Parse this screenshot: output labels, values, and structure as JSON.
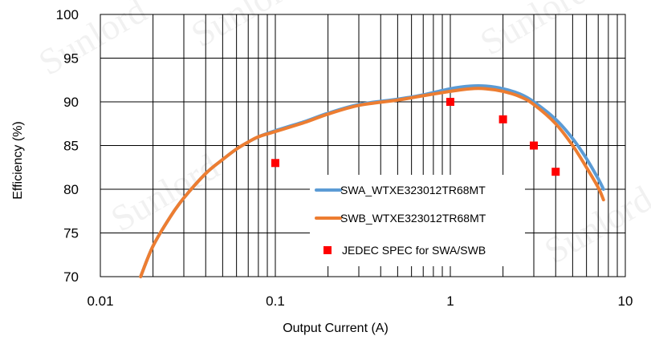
{
  "chart_data": {
    "type": "line",
    "xscale": "log",
    "xlim": [
      0.01,
      10
    ],
    "ylim": [
      70,
      100
    ],
    "grid": true,
    "legend_position": "center-right",
    "xlabel": "Output Current (A)",
    "ylabel": "Efficiency (%)",
    "x_tick_labels": [
      "0.01",
      "0.1",
      "1",
      "10"
    ],
    "y_tick_labels": [
      "70",
      "75",
      "80",
      "85",
      "90",
      "95",
      "100"
    ],
    "series": [
      {
        "name": "SWA_WTXE323012TR68MT",
        "color": "#5B9BD5",
        "kind": "line",
        "x": [
          0.017,
          0.02,
          0.025,
          0.03,
          0.04,
          0.05,
          0.06,
          0.07,
          0.08,
          0.1,
          0.15,
          0.2,
          0.3,
          0.5,
          0.7,
          1.0,
          1.3,
          1.6,
          2.0,
          2.5,
          3.0,
          4.0,
          5.0,
          6.0,
          7.0,
          7.5
        ],
        "y": [
          70.0,
          73.5,
          76.8,
          79.0,
          81.8,
          83.4,
          84.6,
          85.4,
          86.0,
          86.7,
          87.8,
          88.7,
          89.7,
          90.3,
          90.8,
          91.5,
          91.8,
          91.8,
          91.5,
          90.9,
          90.0,
          88.0,
          85.8,
          83.5,
          81.2,
          80.0
        ]
      },
      {
        "name": "SWB_WTXE323012TR68MT",
        "color": "#ED7D31",
        "kind": "line",
        "x": [
          0.017,
          0.02,
          0.025,
          0.03,
          0.04,
          0.05,
          0.06,
          0.07,
          0.08,
          0.1,
          0.15,
          0.2,
          0.3,
          0.5,
          0.7,
          1.0,
          1.3,
          1.6,
          2.0,
          2.5,
          3.0,
          4.0,
          5.0,
          6.0,
          7.0,
          7.5
        ],
        "y": [
          70.0,
          73.5,
          76.8,
          79.0,
          81.8,
          83.4,
          84.6,
          85.4,
          86.0,
          86.6,
          87.7,
          88.6,
          89.6,
          90.2,
          90.7,
          91.2,
          91.5,
          91.5,
          91.2,
          90.6,
          89.7,
          87.5,
          85.0,
          82.5,
          80.2,
          78.8
        ]
      },
      {
        "name": "JEDEC SPEC for SWA/SWB",
        "color": "#FF0000",
        "kind": "marker",
        "x": [
          0.1,
          1,
          2,
          3,
          4
        ],
        "y": [
          83,
          90,
          88,
          85,
          82
        ]
      }
    ]
  },
  "watermark_text": "Sunlord"
}
